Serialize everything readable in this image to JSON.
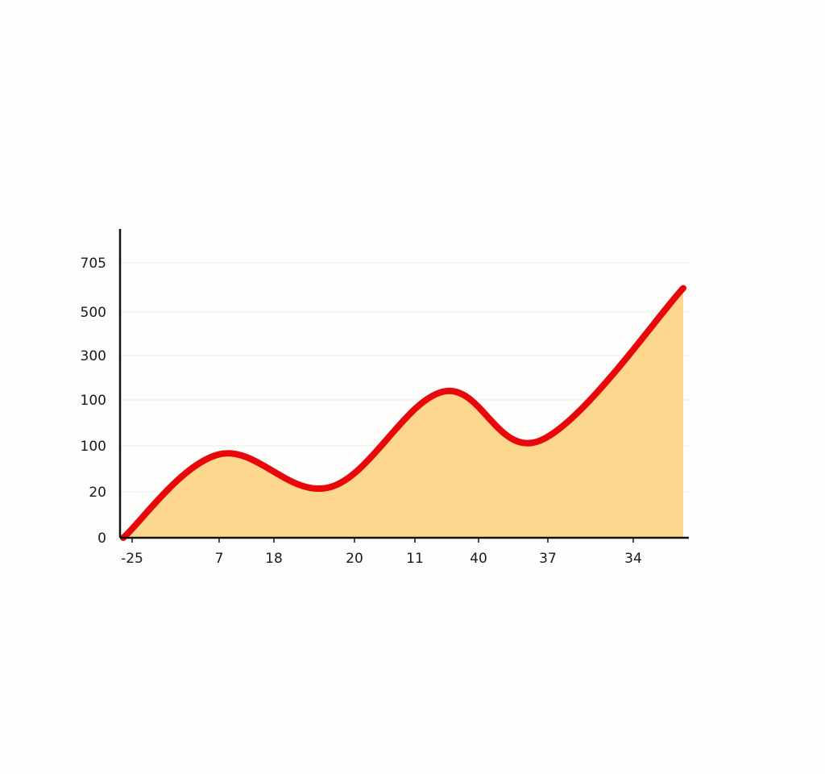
{
  "chart_data": {
    "type": "area",
    "y_tick_labels": [
      "0",
      "20",
      "100",
      "100",
      "300",
      "500",
      "705"
    ],
    "x_tick_labels": [
      "-25",
      "7",
      "18",
      "20",
      "11",
      "40",
      "37",
      "34"
    ],
    "series": [
      {
        "values": [
          0,
          214,
          130,
          375,
          250,
          640
        ],
        "point_ticks": [
          0,
          1,
          2.7,
          4.45,
          5.9,
          8
        ]
      }
    ],
    "grid": true,
    "legend": "none",
    "colors": {
      "line": "#e8080b",
      "fill": "#fdd78d",
      "axis": "#111111",
      "grid": "#ececec",
      "text": "#1a1a1a"
    }
  }
}
